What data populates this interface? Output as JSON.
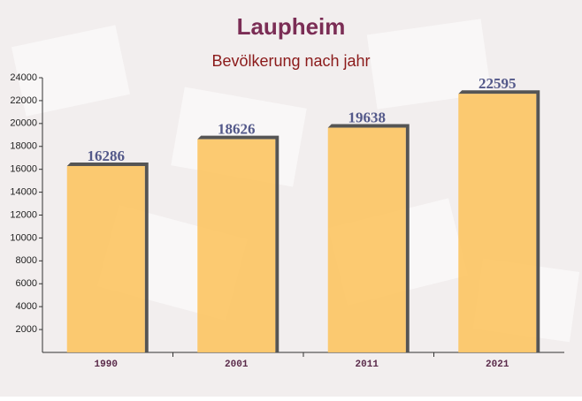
{
  "chart_data": {
    "type": "bar",
    "title": "Laupheim",
    "subtitle": "Bevölkerung nach jahr",
    "categories": [
      "1990",
      "2001",
      "2011",
      "2021"
    ],
    "values": [
      16286,
      18626,
      19638,
      22595
    ],
    "color": "#fcc665",
    "ylim": [
      0,
      24000
    ],
    "yticks": [
      2000,
      4000,
      6000,
      8000,
      10000,
      12000,
      14000,
      16000,
      18000,
      20000,
      22000,
      24000
    ]
  }
}
